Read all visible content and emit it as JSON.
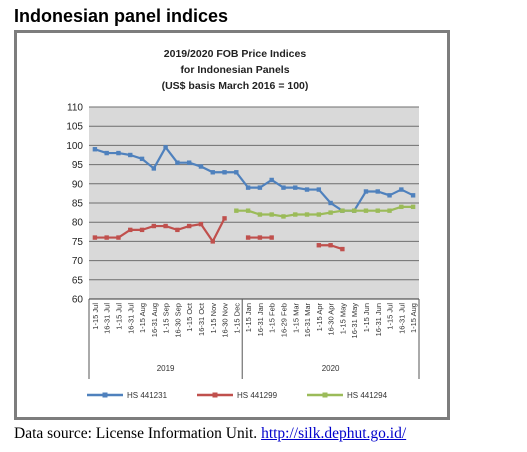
{
  "heading": "Indonesian panel indices",
  "source": {
    "prefix": "Data source: License Information Unit.",
    "link_text": "http://silk.dephut.go.id/"
  },
  "colors": {
    "plot_bg": "#d9d9d9",
    "series_1": "#4f81bd",
    "series_2": "#c0504d",
    "series_3": "#9bbb59"
  },
  "chart_data": {
    "type": "line",
    "title": [
      "2019/2020 FOB Price Indices",
      "for Indonesian Panels",
      "(US$ basis March 2016 = 100)"
    ],
    "ylim": [
      60,
      110
    ],
    "yticks": [
      60,
      65,
      70,
      75,
      80,
      85,
      90,
      95,
      100,
      105,
      110
    ],
    "grid": "horizontal",
    "legend_position": "bottom",
    "categories": [
      "1-15 Jul",
      "16-31 Jul",
      "1-15 Jul",
      "16-31 Jul",
      "1-15 Aug",
      "16-31 Aug",
      "1-15 Sep",
      "16-30 Sep",
      "1-15 Oct",
      "16-31 Oct",
      "1-15 Nov",
      "16-30 Nov",
      "1-15 Dec",
      "1-15 Jan",
      "16-31 Jan",
      "1-15 Feb",
      "16-29 Feb",
      "1-15 Mar",
      "16-31 Mar",
      "1-15 Apr",
      "16-30 Apr",
      "1-15 May",
      "16-31 May",
      "1-15 Jun",
      "16-31 Jun",
      "1-15 Jul",
      "16-31 Jul",
      "1-15 Aug"
    ],
    "year_groups": [
      {
        "label": "2019",
        "start": 0,
        "end": 12
      },
      {
        "label": "2020",
        "start": 13,
        "end": 27
      }
    ],
    "series": [
      {
        "name": "HS 441231",
        "color": "#4f81bd",
        "values": [
          99,
          98,
          98,
          97.5,
          96.5,
          94,
          99.5,
          95.5,
          95.5,
          94.5,
          93,
          93,
          93,
          89,
          89,
          91,
          89,
          89,
          88.5,
          88.5,
          85,
          83,
          83,
          88,
          88,
          87,
          88.5,
          87
        ]
      },
      {
        "name": "HS 441299",
        "color": "#c0504d",
        "values": [
          76,
          76,
          76,
          78,
          78,
          79,
          79,
          78,
          79,
          79.5,
          75,
          81,
          null,
          76,
          76,
          76,
          null,
          null,
          null,
          74,
          74,
          73,
          null,
          null,
          null,
          null,
          null,
          null
        ]
      },
      {
        "name": "HS 441294",
        "color": "#9bbb59",
        "values": [
          null,
          null,
          null,
          null,
          null,
          null,
          null,
          null,
          null,
          null,
          null,
          null,
          83,
          83,
          82,
          82,
          81.5,
          82,
          82,
          82,
          82.5,
          83,
          83,
          83,
          83,
          83,
          84,
          84
        ]
      }
    ]
  }
}
